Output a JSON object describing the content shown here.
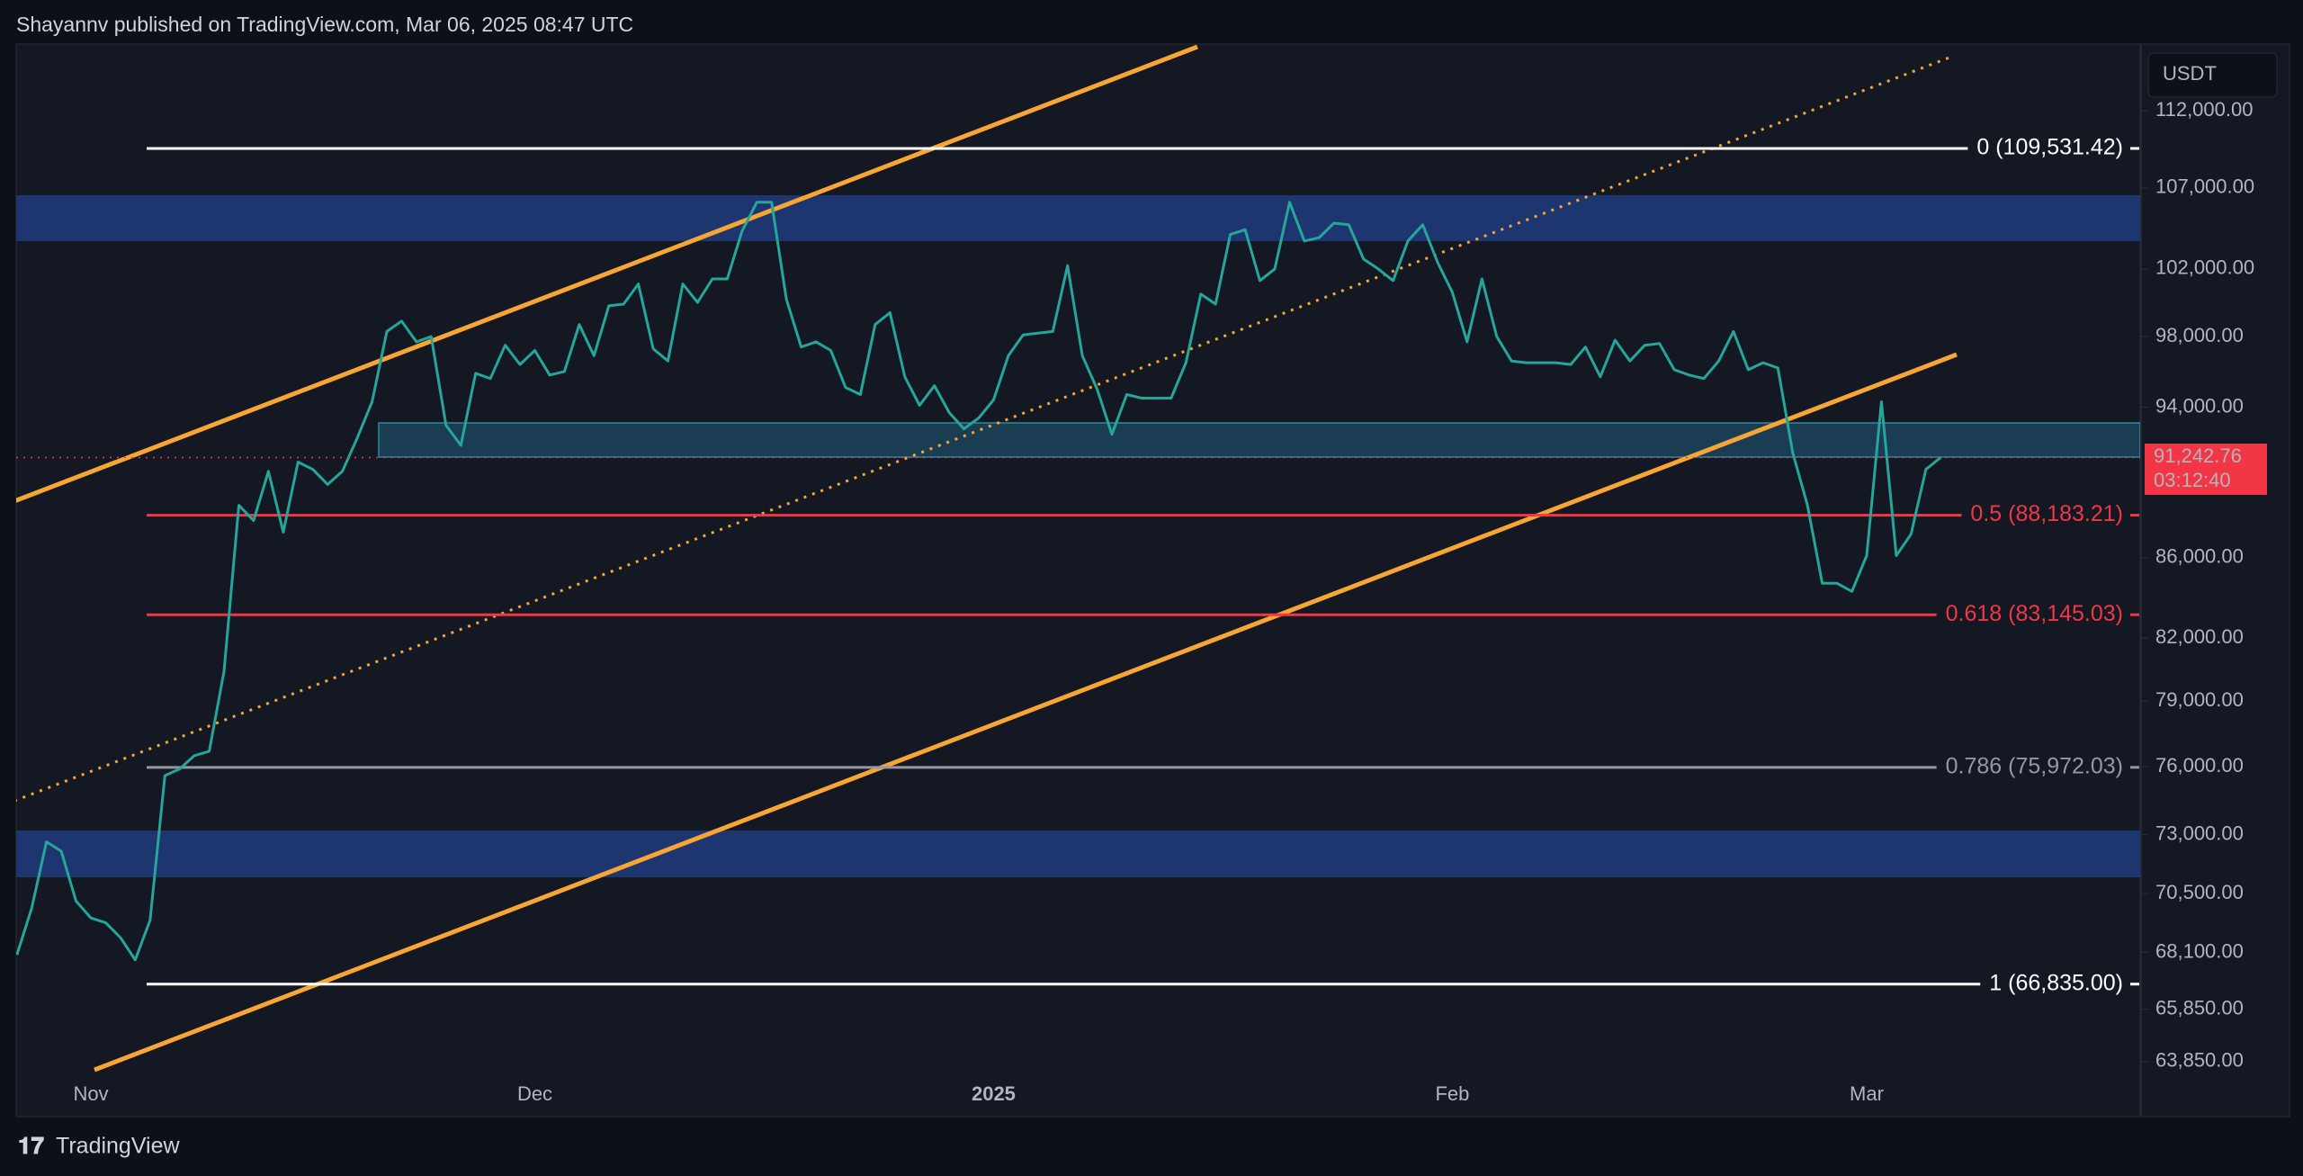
{
  "header": "Shayannv published on TradingView.com, Mar 06, 2025 08:47 UTC",
  "footer": "TradingView",
  "chart_data": {
    "type": "line",
    "log_scale": true,
    "currency": "USDT",
    "color": "#26a69a",
    "ylim": [
      61800,
      116500
    ],
    "yticks": [
      {
        "value": 112000,
        "label": "112,000.00"
      },
      {
        "value": 107000,
        "label": "107,000.00"
      },
      {
        "value": 102000,
        "label": "102,000.00"
      },
      {
        "value": 98000,
        "label": "98,000.00"
      },
      {
        "value": 94000,
        "label": "94,000.00"
      },
      {
        "value": 86000,
        "label": "86,000.00"
      },
      {
        "value": 82000,
        "label": "82,000.00"
      },
      {
        "value": 79000,
        "label": "79,000.00"
      },
      {
        "value": 76000,
        "label": "76,000.00"
      },
      {
        "value": 73000,
        "label": "73,000.00"
      },
      {
        "value": 70500,
        "label": "70,500.00"
      },
      {
        "value": 68100,
        "label": "68,100.00"
      },
      {
        "value": 65850,
        "label": "65,850.00"
      },
      {
        "value": 63850,
        "label": "63,850.00"
      }
    ],
    "categories": [
      null,
      null,
      null,
      null,
      null,
      "Nov",
      null,
      null,
      null,
      null,
      null,
      null,
      null,
      null,
      null,
      null,
      null,
      null,
      null,
      null,
      null,
      null,
      null,
      null,
      null,
      null,
      null,
      null,
      null,
      null,
      null,
      null,
      null,
      null,
      null,
      "Dec",
      null,
      null,
      null,
      null,
      null,
      null,
      null,
      null,
      null,
      null,
      null,
      null,
      null,
      null,
      null,
      null,
      null,
      null,
      null,
      null,
      null,
      null,
      null,
      null,
      null,
      null,
      null,
      null,
      null,
      null,
      "2025",
      null,
      null,
      null,
      null,
      null,
      null,
      null,
      null,
      null,
      null,
      null,
      null,
      null,
      null,
      null,
      null,
      null,
      null,
      null,
      null,
      null,
      null,
      null,
      null,
      null,
      null,
      null,
      null,
      null,
      null,
      "Feb",
      null,
      null,
      null,
      null,
      null,
      null,
      null,
      null,
      null,
      null,
      null,
      null,
      null,
      null,
      null,
      null,
      null,
      null,
      null,
      null,
      null,
      null,
      null,
      null,
      null,
      null,
      null,
      "Mar",
      null,
      null,
      null,
      null,
      null
    ],
    "values": [
      68000,
      69900,
      72700,
      72300,
      70200,
      69500,
      69300,
      68700,
      67800,
      69400,
      75600,
      75900,
      76500,
      76700,
      80400,
      88700,
      87900,
      90500,
      87300,
      91000,
      90600,
      89800,
      90500,
      92300,
      94300,
      98300,
      98900,
      97700,
      98000,
      93000,
      91900,
      95900,
      95600,
      97500,
      96400,
      97200,
      95800,
      96000,
      98700,
      96900,
      99800,
      99900,
      101100,
      97300,
      96600,
      101100,
      100000,
      101400,
      101400,
      104300,
      106100,
      106100,
      100200,
      97400,
      97700,
      97200,
      95100,
      94700,
      98700,
      99400,
      95700,
      94100,
      95200,
      93700,
      92800,
      93400,
      94400,
      96900,
      98100,
      98200,
      98300,
      102200,
      96900,
      95000,
      92500,
      94700,
      94500,
      94500,
      94500,
      96500,
      100500,
      99900,
      104100,
      104400,
      101300,
      102000,
      106100,
      103700,
      103900,
      104800,
      104700,
      102600,
      102000,
      101300,
      103700,
      104700,
      102400,
      100600,
      97700,
      101400,
      98000,
      96600,
      96500,
      96500,
      96500,
      96400,
      97400,
      95700,
      97800,
      96600,
      97500,
      97600,
      96100,
      95800,
      95600,
      96600,
      98300,
      96100,
      96500,
      96200,
      91500,
      88700,
      84700,
      84700,
      84300,
      86100,
      94300,
      86100,
      87200,
      90600,
      91243
    ],
    "fib_levels": [
      {
        "value": 109531.42,
        "label": "0 (109,531.42)",
        "color": "#ffffff"
      },
      {
        "value": 88183.21,
        "label": "0.5 (88,183.21)",
        "color": "#f23645"
      },
      {
        "value": 83145.03,
        "label": "0.618 (83,145.03)",
        "color": "#f23645"
      },
      {
        "value": 75972.03,
        "label": "0.786 (75,972.03)",
        "color": "#9598a1"
      },
      {
        "value": 66835.0,
        "label": "1 (66,835.00)",
        "color": "#ffffff"
      }
    ],
    "last_price": {
      "value": 91242.76,
      "label": "91,242.76"
    },
    "countdown": "03:12:40"
  }
}
